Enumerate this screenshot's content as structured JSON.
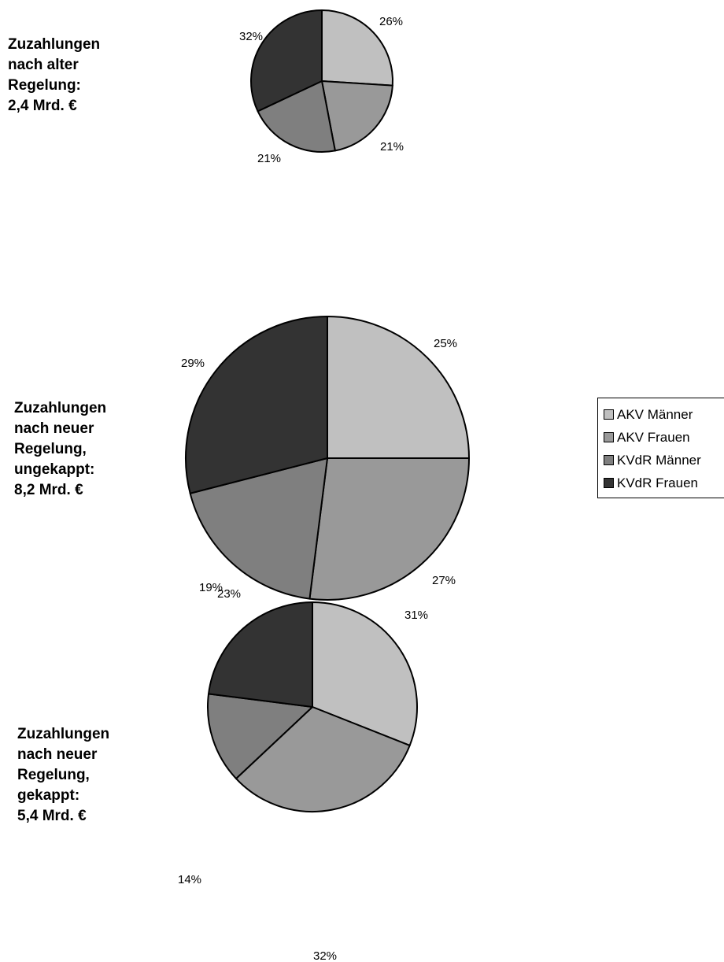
{
  "colors": {
    "AKV Männer": "#c0c0c0",
    "AKV Frauen": "#999999",
    "KVdR Männer": "#7f7f7f",
    "KVdR Frauen": "#333333"
  },
  "legend": {
    "placement": "right",
    "items": [
      "AKV Männer",
      "AKV Frauen",
      "KVdR Männer",
      "KVdR Frauen"
    ]
  },
  "chart_data": [
    {
      "type": "pie",
      "title": "Zuzahlungen\nnach alter\nRegelung:\n2,4 Mrd. €",
      "categories": [
        "AKV Männer",
        "AKV Frauen",
        "KVdR Männer",
        "KVdR Frauen"
      ],
      "values": [
        26,
        21,
        21,
        32
      ],
      "labels": [
        "26%",
        "21%",
        "21%",
        "32%"
      ],
      "total": "2,4 Mrd. €"
    },
    {
      "type": "pie",
      "title": "Zuzahlungen\nnach neuer\nRegelung,\nungekappt:\n8,2 Mrd. €",
      "categories": [
        "AKV Männer",
        "AKV Frauen",
        "KVdR Männer",
        "KVdR Frauen"
      ],
      "values": [
        25,
        27,
        19,
        29
      ],
      "labels": [
        "25%",
        "27%",
        "19%",
        "29%"
      ],
      "total": "8,2 Mrd. €"
    },
    {
      "type": "pie",
      "title": "Zuzahlungen\nnach neuer\nRegelung,\ngekappt:\n5,4 Mrd. €",
      "categories": [
        "AKV Männer",
        "AKV Frauen",
        "KVdR Männer",
        "KVdR Frauen"
      ],
      "values": [
        31,
        32,
        14,
        23
      ],
      "labels": [
        "31%",
        "32%",
        "14%",
        "23%"
      ],
      "total": "5,4 Mrd. €"
    }
  ]
}
